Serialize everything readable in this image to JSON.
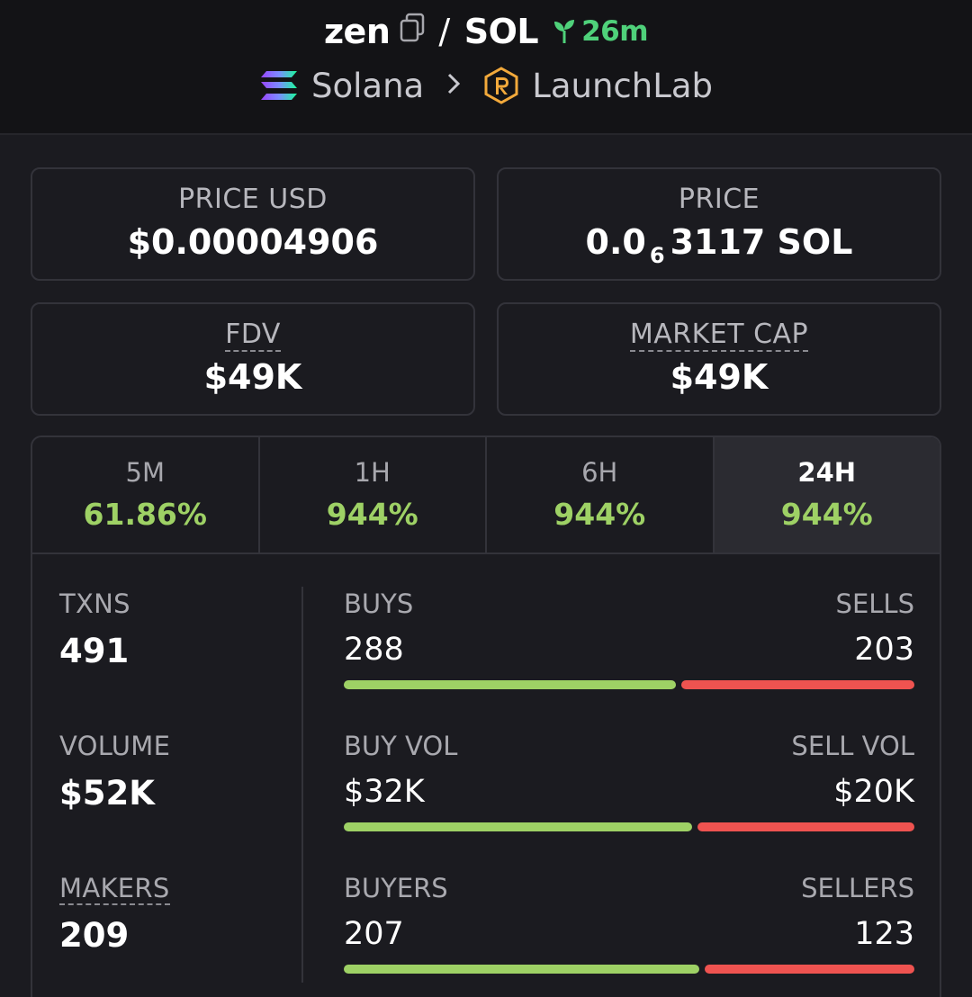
{
  "header": {
    "token": "zen",
    "slash": "/",
    "quote": "SOL",
    "age": "26m",
    "chain": "Solana",
    "dex": "LaunchLab"
  },
  "stats": {
    "price_usd": {
      "label": "PRICE USD",
      "value": "$0.00004906"
    },
    "price": {
      "label": "PRICE",
      "value_prefix": "0.0",
      "value_sub": "6",
      "value_suffix": "3117 SOL"
    },
    "fdv": {
      "label": "FDV",
      "value": "$49K"
    },
    "market_cap": {
      "label": "MARKET CAP",
      "value": "$49K"
    }
  },
  "tabs": [
    {
      "label": "5M",
      "value": "61.86%"
    },
    {
      "label": "1H",
      "value": "944%"
    },
    {
      "label": "6H",
      "value": "944%"
    },
    {
      "label": "24H",
      "value": "944%",
      "active": true
    }
  ],
  "metrics": {
    "txns": {
      "label": "TXNS",
      "value": "491",
      "left_label": "BUYS",
      "left_value": "288",
      "right_label": "SELLS",
      "right_value": "203",
      "buy_fraction": 0.586
    },
    "volume": {
      "label": "VOLUME",
      "value": "$52K",
      "left_label": "BUY VOL",
      "left_value": "$32K",
      "right_label": "SELL VOL",
      "right_value": "$20K",
      "buy_fraction": 0.615
    },
    "makers": {
      "label": "MAKERS",
      "value": "209",
      "left_label": "BUYERS",
      "left_value": "207",
      "right_label": "SELLERS",
      "right_value": "123",
      "buy_fraction": 0.627
    }
  },
  "colors": {
    "background": "#1b1b20",
    "header": "#131316",
    "positive": "#9ed165",
    "negative": "#ef5350",
    "age_green": "#4fd17a"
  },
  "icons": [
    "copy-icon",
    "sprout-icon",
    "solana-logo-icon",
    "chevron-right-icon",
    "launchlab-logo-icon"
  ]
}
